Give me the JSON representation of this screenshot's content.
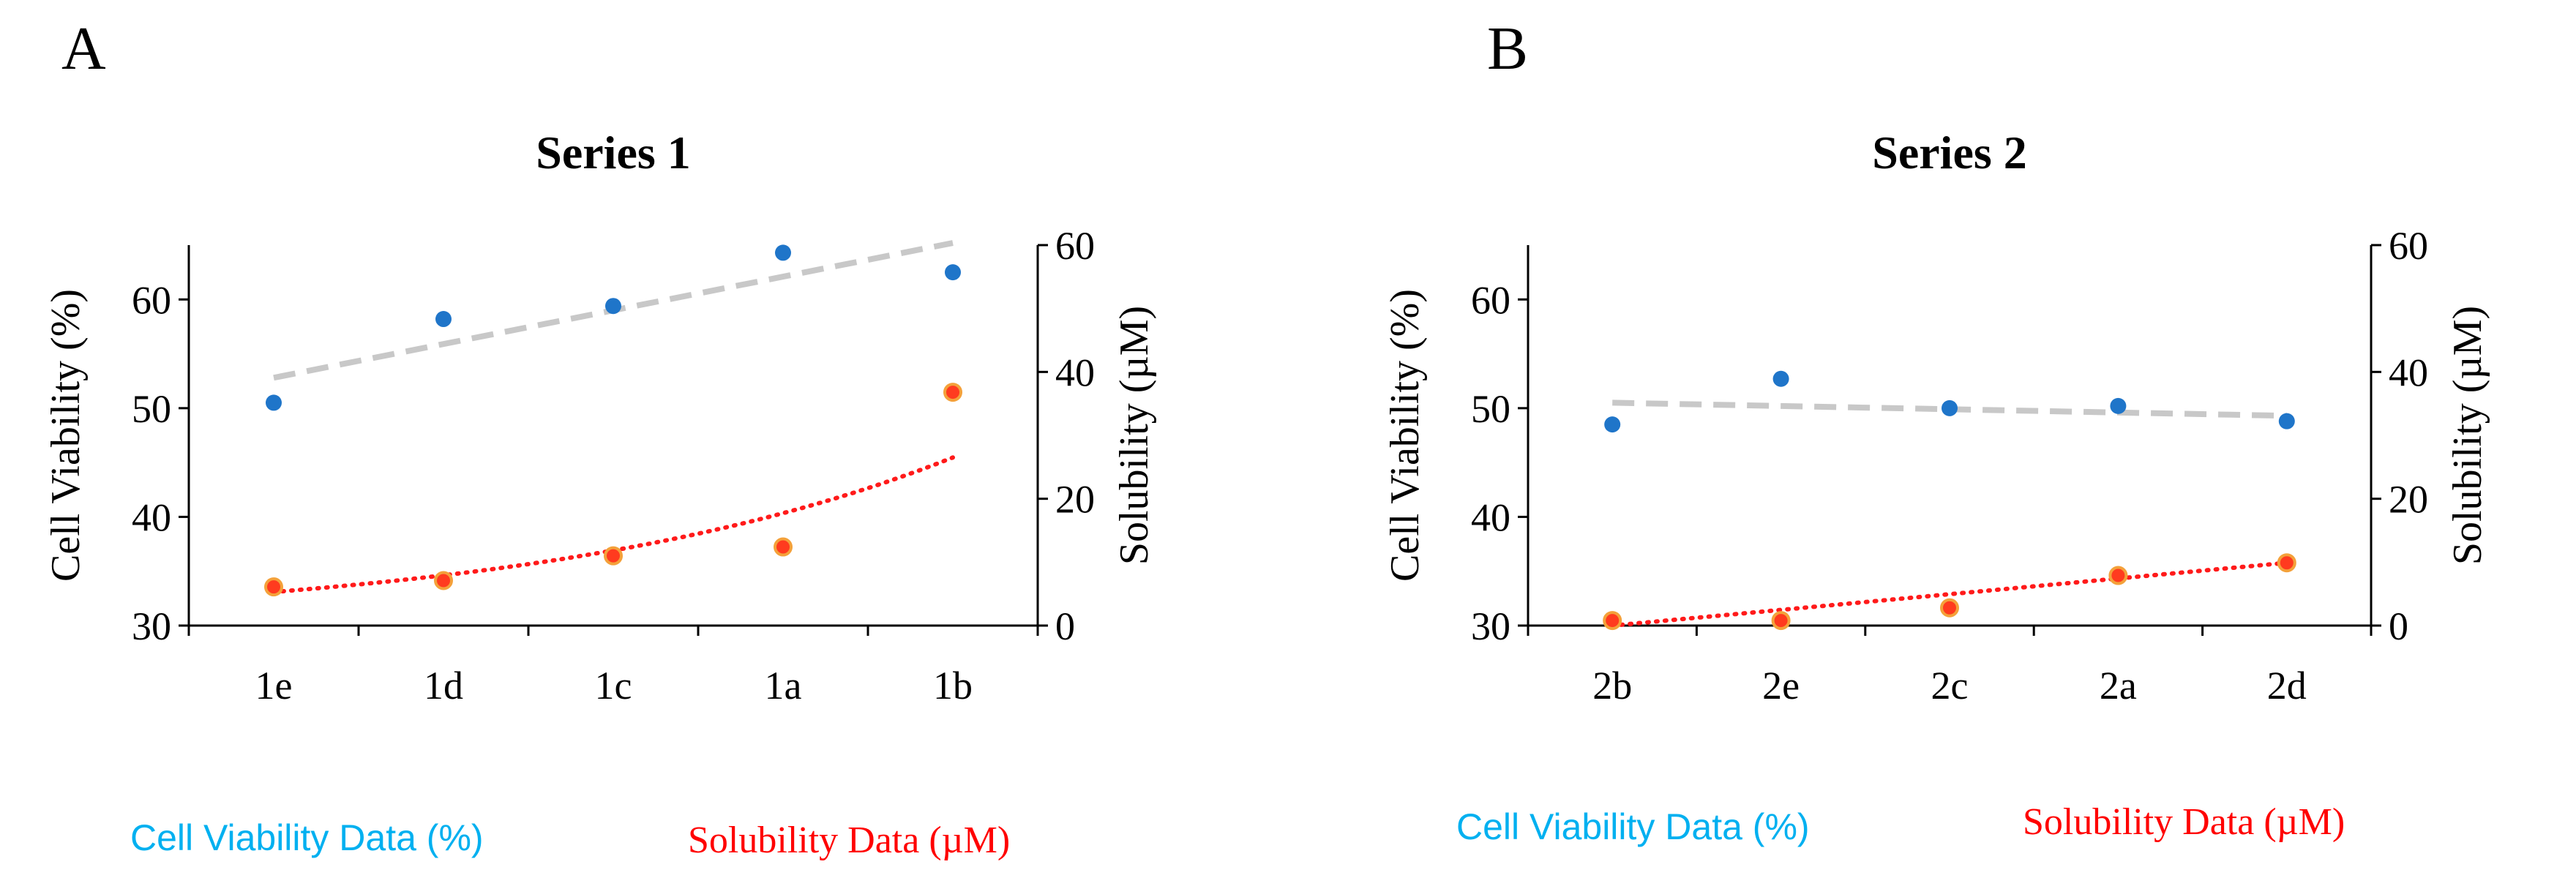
{
  "panels": [
    {
      "letter": "A",
      "legend": [
        {
          "label": "Cell Viability Data (%)",
          "color": "#00b0f0"
        },
        {
          "label": "Solubility Data (µM)",
          "color": "#ff0000"
        }
      ]
    },
    {
      "letter": "B",
      "legend": [
        {
          "label": "Cell Viability Data (%)",
          "color": "#00b0f0"
        },
        {
          "label": "Solubility Data (µM)",
          "color": "#ff0000"
        }
      ]
    }
  ],
  "chart_data": [
    {
      "type": "scatter",
      "title": "Series 1",
      "categories": [
        "1e",
        "1d",
        "1c",
        "1a",
        "1b"
      ],
      "ylabel": "Cell Viability (%)",
      "y2label": "Solubility (µM)",
      "ylim": [
        30,
        65
      ],
      "yticks": [
        30,
        40,
        50,
        60
      ],
      "y2lim": [
        0,
        60
      ],
      "y2ticks": [
        0,
        20,
        40,
        60
      ],
      "series": [
        {
          "name": "Cell Viability Data (%)",
          "axis": "left",
          "color": "#1f75c9",
          "values": [
            50.5,
            58.2,
            59.4,
            64.3,
            62.5
          ],
          "trend": {
            "type": "linear",
            "start": 52.8,
            "end": 65.2,
            "color": "#c8c8c8",
            "dash": "dashed"
          }
        },
        {
          "name": "Solubility Data (µM)",
          "axis": "right",
          "color": "#ff3b1f",
          "values": [
            6.1,
            7.1,
            11.0,
            12.4,
            36.8
          ],
          "trend": {
            "type": "exponential",
            "start": 5.3,
            "end": 26.5,
            "color": "#ff1a1a",
            "dash": "dotted"
          }
        }
      ]
    },
    {
      "type": "scatter",
      "title": "Series 2",
      "categories": [
        "2b",
        "2e",
        "2c",
        "2a",
        "2d"
      ],
      "ylabel": "Cell Viability (%)",
      "y2label": "Solubility (µM)",
      "ylim": [
        30,
        65
      ],
      "yticks": [
        30,
        40,
        50,
        60
      ],
      "y2lim": [
        0,
        60
      ],
      "y2ticks": [
        0,
        20,
        40,
        60
      ],
      "series": [
        {
          "name": "Cell Viability Data (%)",
          "axis": "left",
          "color": "#1f75c9",
          "values": [
            48.5,
            52.7,
            50.0,
            50.2,
            48.8
          ],
          "trend": {
            "type": "linear",
            "start": 50.5,
            "end": 49.3,
            "color": "#c8c8c8",
            "dash": "dashed"
          }
        },
        {
          "name": "Solubility Data (µM)",
          "axis": "right",
          "color": "#ff3b1f",
          "values": [
            0.8,
            0.8,
            2.8,
            7.9,
            9.9
          ],
          "trend": {
            "type": "linear",
            "start": 0.0,
            "end": 9.9,
            "color": "#ff1a1a",
            "dash": "dotted"
          }
        }
      ]
    }
  ]
}
